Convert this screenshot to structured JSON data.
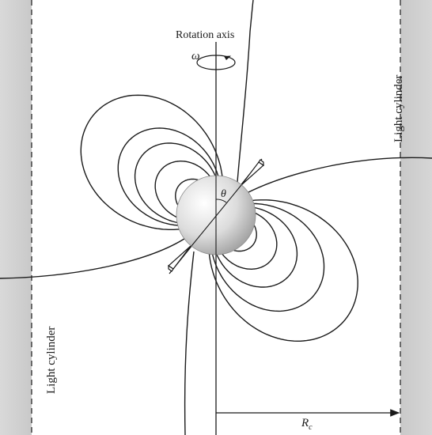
{
  "labels": {
    "rotation_axis": "Rotation axis",
    "omega": "ω",
    "theta": "θ",
    "light_cylinder_right": "Light cylinder",
    "light_cylinder_left": "Light cylinder",
    "rc_main": "R",
    "rc_sub": "c"
  },
  "colors": {
    "line": "#1a1a1a",
    "shade": "#cfcfcf",
    "background": "#ffffff"
  },
  "field_line_scales_upper": [
    60,
    90,
    120,
    145,
    200
  ],
  "field_line_scales_lower": [
    60,
    90,
    120,
    160,
    210
  ]
}
